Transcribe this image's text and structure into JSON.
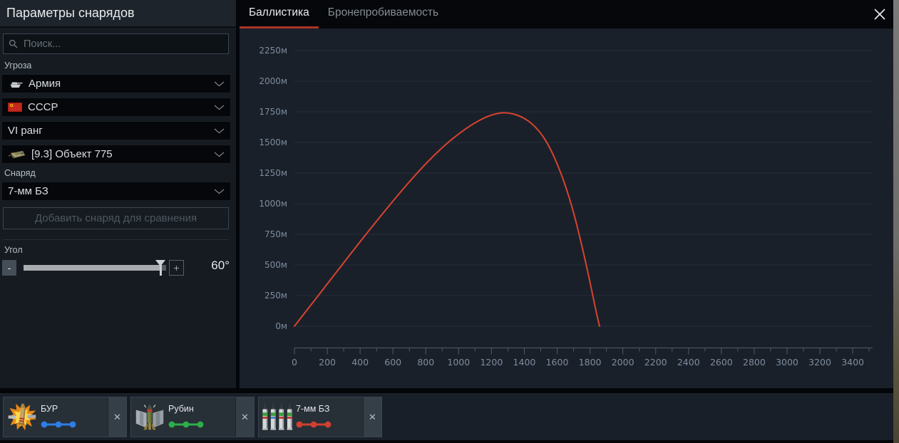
{
  "colors": {
    "accent_red": "#ab3424",
    "curve_red": "#d7432f",
    "legend_blue": "#2e7ee6",
    "legend_green": "#2cae49",
    "legend_red": "#d0402f"
  },
  "window": {
    "title": "Параметры снарядов",
    "close_icon": "✕"
  },
  "sidebar": {
    "search": {
      "placeholder": "Поиск..."
    },
    "threat_label": "Угроза",
    "dropdowns": [
      {
        "label": "Армия",
        "icon": "tank-silhouette-icon"
      },
      {
        "label": "СССР",
        "icon": "ussr-flag-icon"
      },
      {
        "label": "VI ранг",
        "icon": ""
      },
      {
        "label": "[9.3] Объект 775",
        "icon": "vehicle-camo-icon"
      }
    ],
    "shell_label": "Снаряд",
    "shell_dropdown": {
      "label": "7-мм БЗ"
    },
    "add_compare_button": "Добавить снаряд для сравнения",
    "angle": {
      "label": "Угол",
      "minus": "-",
      "plus": "+",
      "value": "60°",
      "slider_percent": 96
    }
  },
  "tabs": [
    {
      "label": "Баллистика",
      "active": true
    },
    {
      "label": "Бронепробиваемость",
      "active": false
    }
  ],
  "chart_data": {
    "type": "line",
    "title": "",
    "xlabel": "",
    "ylabel": "",
    "xlim": [
      0,
      3500
    ],
    "ylim": [
      0,
      2250
    ],
    "grid": "horizontal",
    "legend_position": "none",
    "x_tick_labels": [
      0,
      200,
      400,
      600,
      800,
      1000,
      1200,
      1400,
      1600,
      1800,
      2000,
      2200,
      2400,
      2600,
      2800,
      3000,
      3200,
      3400
    ],
    "x_minor_step": 100,
    "x_major_step": 200,
    "y_tick_labels": [
      "0м",
      "250м",
      "500м",
      "750м",
      "1000м",
      "1250м",
      "1500м",
      "1750м",
      "2000м",
      "2250м"
    ],
    "y_tick_step_m": 250,
    "series": [
      {
        "name": "7-мм БЗ",
        "color": "#d7432f",
        "points": [
          [
            0,
            0
          ],
          [
            100,
            172
          ],
          [
            200,
            345
          ],
          [
            300,
            518
          ],
          [
            400,
            690
          ],
          [
            500,
            858
          ],
          [
            600,
            1022
          ],
          [
            700,
            1180
          ],
          [
            800,
            1328
          ],
          [
            900,
            1460
          ],
          [
            1000,
            1572
          ],
          [
            1100,
            1663
          ],
          [
            1200,
            1729
          ],
          [
            1290,
            1748
          ],
          [
            1380,
            1716
          ],
          [
            1460,
            1642
          ],
          [
            1530,
            1523
          ],
          [
            1590,
            1362
          ],
          [
            1650,
            1152
          ],
          [
            1700,
            932
          ],
          [
            1750,
            662
          ],
          [
            1800,
            362
          ],
          [
            1835,
            132
          ],
          [
            1858,
            0
          ]
        ]
      }
    ]
  },
  "bottom_bar": {
    "close_icon": "✕",
    "cards": [
      {
        "name": "БУР",
        "legend_color": "#2e7ee6",
        "icon": "ap-shell-explosion-icon"
      },
      {
        "name": "Рубин",
        "legend_color": "#2cae49",
        "icon": "heat-shell-icon"
      },
      {
        "name": "7-мм БЗ",
        "legend_color": "#d0402f",
        "icon": "mg-cartridges-icon"
      }
    ]
  }
}
